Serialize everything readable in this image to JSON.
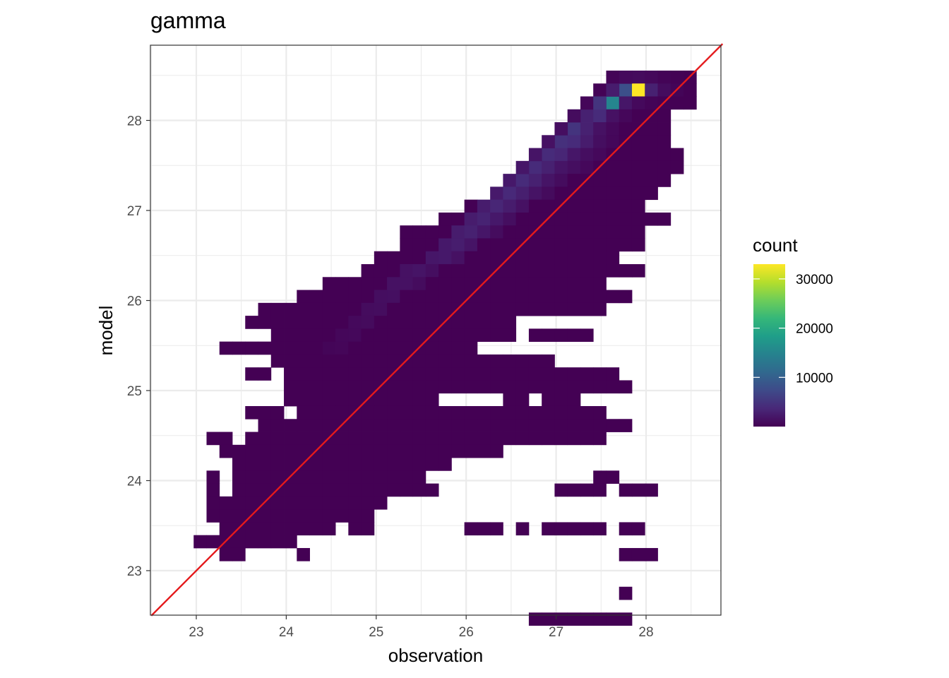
{
  "chart_data": {
    "type": "heatmap",
    "title": "gamma",
    "xlabel": "observation",
    "ylabel": "model",
    "xlim": [
      22.5,
      28.85
    ],
    "ylim": [
      22.5,
      28.85
    ],
    "x_ticks": [
      23,
      24,
      25,
      26,
      27,
      28
    ],
    "y_ticks": [
      23,
      24,
      25,
      26,
      27,
      28
    ],
    "bin_origin": [
      22.684,
      22.678
    ],
    "bin_width": 0.1433,
    "bin_height": 0.1433,
    "count_range": [
      1,
      33000
    ],
    "legend": {
      "title": "count",
      "ticks": [
        10000,
        20000,
        30000
      ],
      "placement": "right",
      "colors": [
        "#440154",
        "#482878",
        "#3E4A89",
        "#31688E",
        "#26828E",
        "#1F9E89",
        "#35B779",
        "#6DCD59",
        "#B4DE2C",
        "#FDE725"
      ]
    },
    "reference_line": {
      "type": "identity",
      "slope": 1,
      "intercept": 0,
      "color": "#e41a1c"
    },
    "grid": true,
    "bins": [
      [
        34,
        40,
        300
      ],
      [
        35,
        40,
        800
      ],
      [
        36,
        40,
        900
      ],
      [
        37,
        40,
        700
      ],
      [
        38,
        40,
        300
      ],
      [
        39,
        40,
        100
      ],
      [
        33,
        39,
        200
      ],
      [
        34,
        39,
        2500
      ],
      [
        35,
        39,
        8000
      ],
      [
        36,
        39,
        33000
      ],
      [
        37,
        39,
        3000
      ],
      [
        38,
        39,
        1000
      ],
      [
        39,
        39,
        400
      ],
      [
        32,
        38,
        500
      ],
      [
        33,
        38,
        5000
      ],
      [
        34,
        38,
        15000
      ],
      [
        35,
        38,
        2000
      ],
      [
        36,
        38,
        800
      ],
      [
        37,
        38,
        300
      ],
      [
        38,
        38,
        100
      ],
      [
        31,
        37,
        1000
      ],
      [
        32,
        37,
        3000
      ],
      [
        33,
        37,
        4000
      ],
      [
        34,
        37,
        1500
      ],
      [
        35,
        37,
        600
      ],
      [
        30,
        36,
        1200
      ],
      [
        31,
        36,
        5000
      ],
      [
        32,
        36,
        3000
      ],
      [
        33,
        36,
        1500
      ],
      [
        34,
        36,
        700
      ],
      [
        29,
        35,
        1500
      ],
      [
        30,
        35,
        4500
      ],
      [
        31,
        35,
        4000
      ],
      [
        32,
        35,
        2500
      ],
      [
        33,
        35,
        1200
      ],
      [
        34,
        35,
        600
      ],
      [
        28,
        34,
        1800
      ],
      [
        29,
        34,
        4000
      ],
      [
        30,
        34,
        3500
      ],
      [
        31,
        34,
        2000
      ],
      [
        32,
        34,
        1200
      ],
      [
        33,
        34,
        700
      ],
      [
        27,
        33,
        2000
      ],
      [
        28,
        33,
        4000
      ],
      [
        29,
        33,
        3000
      ],
      [
        30,
        33,
        1800
      ],
      [
        31,
        33,
        1200
      ],
      [
        32,
        33,
        700
      ],
      [
        26,
        32,
        2200
      ],
      [
        27,
        32,
        4000
      ],
      [
        28,
        32,
        3000
      ],
      [
        29,
        32,
        1800
      ],
      [
        30,
        32,
        1000
      ],
      [
        25,
        31,
        2300
      ],
      [
        26,
        31,
        3800
      ],
      [
        27,
        31,
        2800
      ],
      [
        28,
        31,
        1700
      ],
      [
        29,
        31,
        900
      ],
      [
        24,
        30,
        2500
      ],
      [
        25,
        30,
        3500
      ],
      [
        26,
        30,
        2500
      ],
      [
        27,
        30,
        1500
      ],
      [
        23,
        29,
        2500
      ],
      [
        24,
        29,
        3200
      ],
      [
        25,
        29,
        2200
      ],
      [
        26,
        29,
        1200
      ],
      [
        22,
        28,
        2500
      ],
      [
        23,
        28,
        3000
      ],
      [
        24,
        28,
        2000
      ],
      [
        25,
        28,
        1000
      ],
      [
        21,
        27,
        2200
      ],
      [
        22,
        27,
        2600
      ],
      [
        23,
        27,
        1800
      ],
      [
        20,
        26,
        2000
      ],
      [
        21,
        26,
        2200
      ],
      [
        22,
        26,
        1500
      ],
      [
        18,
        25,
        1500
      ],
      [
        19,
        25,
        1800
      ],
      [
        20,
        25,
        1200
      ],
      [
        17,
        24,
        1500
      ],
      [
        18,
        24,
        1500
      ],
      [
        19,
        24,
        1000
      ],
      [
        16,
        23,
        1200
      ],
      [
        17,
        23,
        1300
      ],
      [
        15,
        22,
        1000
      ],
      [
        16,
        22,
        1100
      ],
      [
        14,
        21,
        800
      ],
      [
        15,
        21,
        900
      ],
      [
        13,
        20,
        600
      ],
      [
        14,
        20,
        700
      ],
      [
        12,
        19,
        400
      ],
      [
        13,
        19,
        500
      ]
    ],
    "rows": [
      [
        40,
        [
          [
            36,
            40
          ]
        ]
      ],
      [
        39,
        [
          [
            35,
            40
          ]
        ]
      ],
      [
        38,
        [
          [
            34,
            40
          ]
        ]
      ],
      [
        37,
        [
          [
            32,
            38
          ]
        ]
      ],
      [
        36,
        [
          [
            31,
            38
          ]
        ]
      ],
      [
        35,
        [
          [
            30,
            38
          ]
        ]
      ],
      [
        34,
        [
          [
            29,
            39
          ]
        ]
      ],
      [
        33,
        [
          [
            28,
            39
          ]
        ]
      ],
      [
        32,
        [
          [
            26,
            38
          ]
        ]
      ],
      [
        31,
        [
          [
            25,
            37
          ]
        ]
      ],
      [
        30,
        [
          [
            23,
            36
          ]
        ]
      ],
      [
        29,
        [
          [
            21,
            36
          ],
          [
            37,
            38
          ]
        ]
      ],
      [
        28,
        [
          [
            18,
            20
          ],
          [
            21,
            36
          ]
        ]
      ],
      [
        27,
        [
          [
            18,
            36
          ]
        ]
      ],
      [
        26,
        [
          [
            16,
            34
          ]
        ]
      ],
      [
        25,
        [
          [
            15,
            34
          ],
          [
            35,
            36
          ]
        ]
      ],
      [
        24,
        [
          [
            12,
            33
          ]
        ]
      ],
      [
        23,
        [
          [
            10,
            11
          ],
          [
            12,
            33
          ],
          [
            34,
            35
          ]
        ]
      ],
      [
        22,
        [
          [
            7,
            33
          ]
        ]
      ],
      [
        21,
        [
          [
            6,
            26
          ]
        ]
      ],
      [
        20,
        [
          [
            8,
            9
          ],
          [
            10,
            24
          ],
          [
            25,
            26
          ],
          [
            28,
            32
          ]
        ]
      ],
      [
        19,
        [
          [
            4,
            23
          ]
        ]
      ],
      [
        18,
        [
          [
            8,
            21
          ],
          [
            22,
            25
          ],
          [
            26,
            27
          ],
          [
            28,
            29
          ]
        ]
      ],
      [
        17,
        [
          [
            6,
            7
          ],
          [
            9,
            24
          ],
          [
            25,
            26
          ],
          [
            27,
            34
          ]
        ]
      ],
      [
        16,
        [
          [
            9,
            10
          ],
          [
            11,
            27
          ],
          [
            28,
            29
          ],
          [
            30,
            30
          ],
          [
            31,
            35
          ]
        ]
      ],
      [
        15,
        [
          [
            9,
            20
          ],
          [
            26,
            27
          ],
          [
            29,
            31
          ]
        ]
      ],
      [
        14,
        [
          [
            6,
            8
          ],
          [
            10,
            26
          ],
          [
            27,
            28
          ],
          [
            29,
            33
          ]
        ]
      ],
      [
        13,
        [
          [
            7,
            28
          ],
          [
            29,
            33
          ],
          [
            34,
            35
          ]
        ]
      ],
      [
        12,
        [
          [
            3,
            4
          ],
          [
            6,
            20
          ],
          [
            21,
            22
          ],
          [
            23,
            24
          ],
          [
            25,
            33
          ]
        ]
      ],
      [
        11,
        [
          [
            4,
            6
          ],
          [
            7,
            22
          ],
          [
            23,
            25
          ]
        ]
      ],
      [
        10,
        [
          [
            5,
            21
          ]
        ]
      ],
      [
        9,
        [
          [
            3,
            3
          ],
          [
            5,
            19
          ],
          [
            33,
            34
          ]
        ]
      ],
      [
        8,
        [
          [
            3,
            3
          ],
          [
            5,
            19
          ],
          [
            20,
            20
          ],
          [
            30,
            33
          ],
          [
            35,
            37
          ]
        ]
      ],
      [
        7,
        [
          [
            3,
            16
          ]
        ]
      ],
      [
        6,
        [
          [
            3,
            3
          ],
          [
            4,
            15
          ]
        ]
      ],
      [
        5,
        [
          [
            4,
            12
          ],
          [
            14,
            15
          ],
          [
            23,
            25
          ],
          [
            27,
            27
          ],
          [
            29,
            33
          ],
          [
            35,
            36
          ]
        ]
      ],
      [
        4,
        [
          [
            2,
            9
          ]
        ]
      ],
      [
        3,
        [
          [
            4,
            5
          ],
          [
            10,
            10
          ],
          [
            35,
            37
          ]
        ]
      ],
      [
        0,
        [
          [
            35,
            35
          ]
        ]
      ],
      [
        -2,
        [
          [
            28,
            35
          ]
        ]
      ]
    ]
  }
}
